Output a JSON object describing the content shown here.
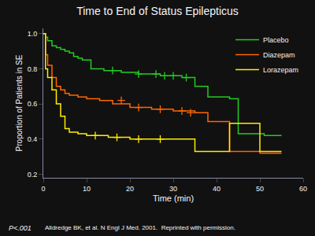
{
  "chart_data": {
    "type": "step",
    "title": "Time to End of Status Epilepticus",
    "xlabel": "Time (min)",
    "ylabel": "Proportion of Patients in SE",
    "xlim": [
      0,
      60
    ],
    "ylim": [
      0.18,
      1.03
    ],
    "xticks": [
      0,
      10,
      20,
      30,
      40,
      50,
      60
    ],
    "yticks": [
      0.2,
      0.4,
      0.6,
      0.8,
      {
        "value": 1.0,
        "label": "1.0"
      }
    ],
    "grid": false,
    "legend": "upper right",
    "series": [
      {
        "name": "Placebo",
        "color": "#22CC22",
        "x": [
          0,
          0.5,
          1,
          2,
          3,
          4,
          5,
          6,
          7,
          8,
          9,
          11,
          14,
          18,
          22,
          27,
          32,
          35,
          38,
          43,
          45,
          51,
          55
        ],
        "values": [
          1.0,
          0.98,
          0.96,
          0.93,
          0.92,
          0.91,
          0.9,
          0.89,
          0.87,
          0.86,
          0.85,
          0.8,
          0.79,
          0.78,
          0.77,
          0.76,
          0.75,
          0.7,
          0.64,
          0.63,
          0.43,
          0.42,
          0.42
        ],
        "censor_x": [
          16,
          22,
          26,
          28,
          30,
          33
        ],
        "censor_y": [
          0.79,
          0.77,
          0.77,
          0.76,
          0.76,
          0.75
        ]
      },
      {
        "name": "Diazepam",
        "color": "#FF6600",
        "x": [
          0,
          0.5,
          1,
          2,
          3,
          4,
          5,
          6,
          8,
          10,
          13,
          16,
          20,
          25,
          30,
          35,
          38,
          43,
          50,
          55
        ],
        "values": [
          1.0,
          0.88,
          0.82,
          0.75,
          0.7,
          0.68,
          0.66,
          0.65,
          0.64,
          0.63,
          0.62,
          0.6,
          0.58,
          0.57,
          0.56,
          0.55,
          0.5,
          0.33,
          0.32,
          0.32
        ],
        "censor_x": [
          18,
          22,
          27,
          32,
          34
        ],
        "censor_y": [
          0.62,
          0.58,
          0.57,
          0.56,
          0.55
        ]
      },
      {
        "name": "Lorazepam",
        "color": "#FFEE00",
        "x": [
          0,
          0.5,
          1,
          2,
          3,
          4,
          5,
          6,
          8,
          10,
          15,
          20,
          25,
          30,
          35,
          38,
          43,
          50,
          55
        ],
        "values": [
          1.0,
          0.8,
          0.75,
          0.68,
          0.6,
          0.53,
          0.46,
          0.44,
          0.43,
          0.42,
          0.41,
          0.4,
          0.4,
          0.4,
          0.33,
          0.33,
          0.49,
          0.33,
          0.33
        ],
        "censor_x": [
          12,
          17,
          22,
          27
        ],
        "censor_y": [
          0.42,
          0.41,
          0.4,
          0.4
        ]
      }
    ],
    "annotations": [
      "P<.001",
      "Alldredge BK, et al. N Engl J Med. 2001.  Reprinted with permission."
    ]
  }
}
